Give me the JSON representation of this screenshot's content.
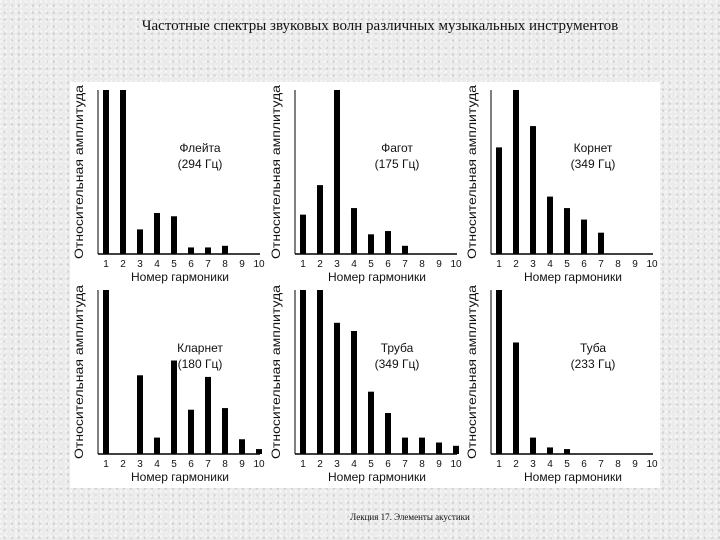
{
  "slide": {
    "title": "Частотные спектры звуковых волн различных музыкальных инструментов",
    "footer": "Лекция 17. Элементы акустики"
  },
  "colors": {
    "bar": "#000000",
    "panel": "#ffffff",
    "text": "#111111"
  },
  "chart_data": [
    {
      "type": "bar",
      "instrument": "Флейта",
      "frequency": "(294 Гц)",
      "categories": [
        "1",
        "2",
        "3",
        "4",
        "5",
        "6",
        "7",
        "8",
        "9",
        "10"
      ],
      "values": [
        100,
        100,
        15,
        25,
        23,
        4,
        4,
        5,
        0,
        0
      ],
      "xlabel": "Номер гармоники",
      "ylabel": "Относительная амплитуда",
      "ylim": [
        0,
        100
      ]
    },
    {
      "type": "bar",
      "instrument": "Фагот",
      "frequency": "(175 Гц)",
      "categories": [
        "1",
        "2",
        "3",
        "4",
        "5",
        "6",
        "7",
        "8",
        "9",
        "10"
      ],
      "values": [
        24,
        42,
        100,
        28,
        12,
        14,
        5,
        0,
        0,
        0
      ],
      "xlabel": "Номер гармоники",
      "ylabel": "Относительная амплитуда",
      "ylim": [
        0,
        100
      ]
    },
    {
      "type": "bar",
      "instrument": "Корнет",
      "frequency": "(349 Гц)",
      "categories": [
        "1",
        "2",
        "3",
        "4",
        "5",
        "6",
        "7",
        "8",
        "9",
        "10"
      ],
      "values": [
        65,
        100,
        78,
        35,
        28,
        21,
        13,
        0,
        0,
        0
      ],
      "xlabel": "Номер гармоники",
      "ylabel": "Относительная амплитуда",
      "ylim": [
        0,
        100
      ]
    },
    {
      "type": "bar",
      "instrument": "Кларнет",
      "frequency": "(180 Гц)",
      "categories": [
        "1",
        "2",
        "3",
        "4",
        "5",
        "6",
        "7",
        "8",
        "9",
        "10"
      ],
      "values": [
        100,
        0,
        48,
        10,
        57,
        27,
        47,
        28,
        9,
        3
      ],
      "xlabel": "Номер гармоники",
      "ylabel": "Относительная амплитуда",
      "ylim": [
        0,
        100
      ]
    },
    {
      "type": "bar",
      "instrument": "Труба",
      "frequency": "(349 Гц)",
      "categories": [
        "1",
        "2",
        "3",
        "4",
        "5",
        "6",
        "7",
        "8",
        "9",
        "10"
      ],
      "values": [
        100,
        100,
        80,
        75,
        38,
        25,
        10,
        10,
        7,
        5
      ],
      "xlabel": "Номер гармоники",
      "ylabel": "Относительная амплитуда",
      "ylim": [
        0,
        100
      ]
    },
    {
      "type": "bar",
      "instrument": "Туба",
      "frequency": "(233 Гц)",
      "categories": [
        "1",
        "2",
        "3",
        "4",
        "5",
        "6",
        "7",
        "8",
        "9",
        "10"
      ],
      "values": [
        100,
        68,
        10,
        4,
        3,
        0,
        0,
        0,
        0,
        0
      ],
      "xlabel": "Номер гармоники",
      "ylabel": "Относительная амплитуда",
      "ylim": [
        0,
        100
      ]
    }
  ]
}
